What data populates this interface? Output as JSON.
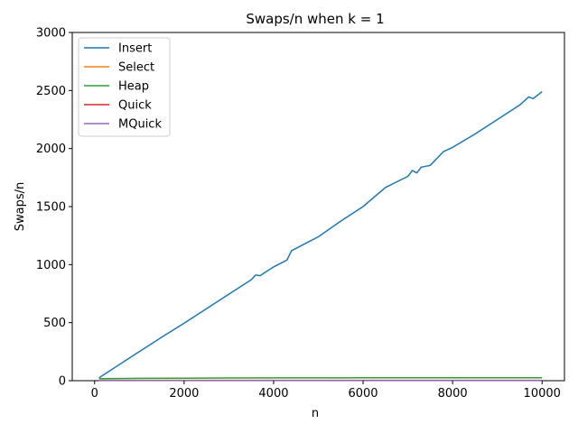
{
  "chart_data": {
    "type": "line",
    "title": "Swaps/n when k = 1",
    "xlabel": "n",
    "ylabel": "Swaps/n",
    "xlim": [
      -500,
      10500
    ],
    "ylim": [
      0,
      3000
    ],
    "xticks": [
      0,
      2000,
      4000,
      6000,
      8000,
      10000
    ],
    "yticks": [
      0,
      500,
      1000,
      1500,
      2000,
      2500,
      3000
    ],
    "grid": false,
    "legend_position": "upper-left",
    "colors": {
      "Insert": "#1f77b4",
      "Select": "#ff7f0e",
      "Heap": "#2ca02c",
      "Quick": "#d62728",
      "MQuick": "#9467bd"
    },
    "series": [
      {
        "name": "Insert",
        "x": [
          100,
          500,
          1000,
          1500,
          2000,
          2500,
          3000,
          3500,
          3600,
          3700,
          3800,
          4000,
          4300,
          4400,
          4800,
          5000,
          5500,
          6000,
          6500,
          7000,
          7100,
          7200,
          7300,
          7500,
          7800,
          8000,
          8500,
          9000,
          9500,
          9700,
          9800,
          10000
        ],
        "y": [
          25,
          125,
          250,
          375,
          495,
          620,
          745,
          870,
          910,
          905,
          930,
          980,
          1040,
          1120,
          1200,
          1240,
          1375,
          1500,
          1665,
          1760,
          1810,
          1790,
          1840,
          1855,
          1975,
          2010,
          2125,
          2250,
          2375,
          2445,
          2430,
          2490
        ]
      },
      {
        "name": "Select",
        "x": [
          100,
          1000,
          2000,
          4000,
          6000,
          8000,
          10000
        ],
        "y": [
          1,
          1,
          1,
          1,
          1,
          1,
          1
        ]
      },
      {
        "name": "Heap",
        "x": [
          100,
          500,
          1000,
          2000,
          3000,
          4000,
          5000,
          6000,
          7000,
          8000,
          9000,
          10000
        ],
        "y": [
          17,
          19,
          20,
          22,
          23,
          24,
          24,
          25,
          25,
          26,
          26,
          26
        ]
      },
      {
        "name": "Quick",
        "x": [
          100,
          1000,
          2000,
          4000,
          6000,
          8000,
          10000
        ],
        "y": [
          3,
          3,
          3,
          3,
          3,
          3,
          3
        ]
      },
      {
        "name": "MQuick",
        "x": [
          100,
          1000,
          2000,
          4000,
          6000,
          8000,
          10000
        ],
        "y": [
          2,
          2,
          2,
          2,
          2,
          2,
          2
        ]
      }
    ]
  }
}
